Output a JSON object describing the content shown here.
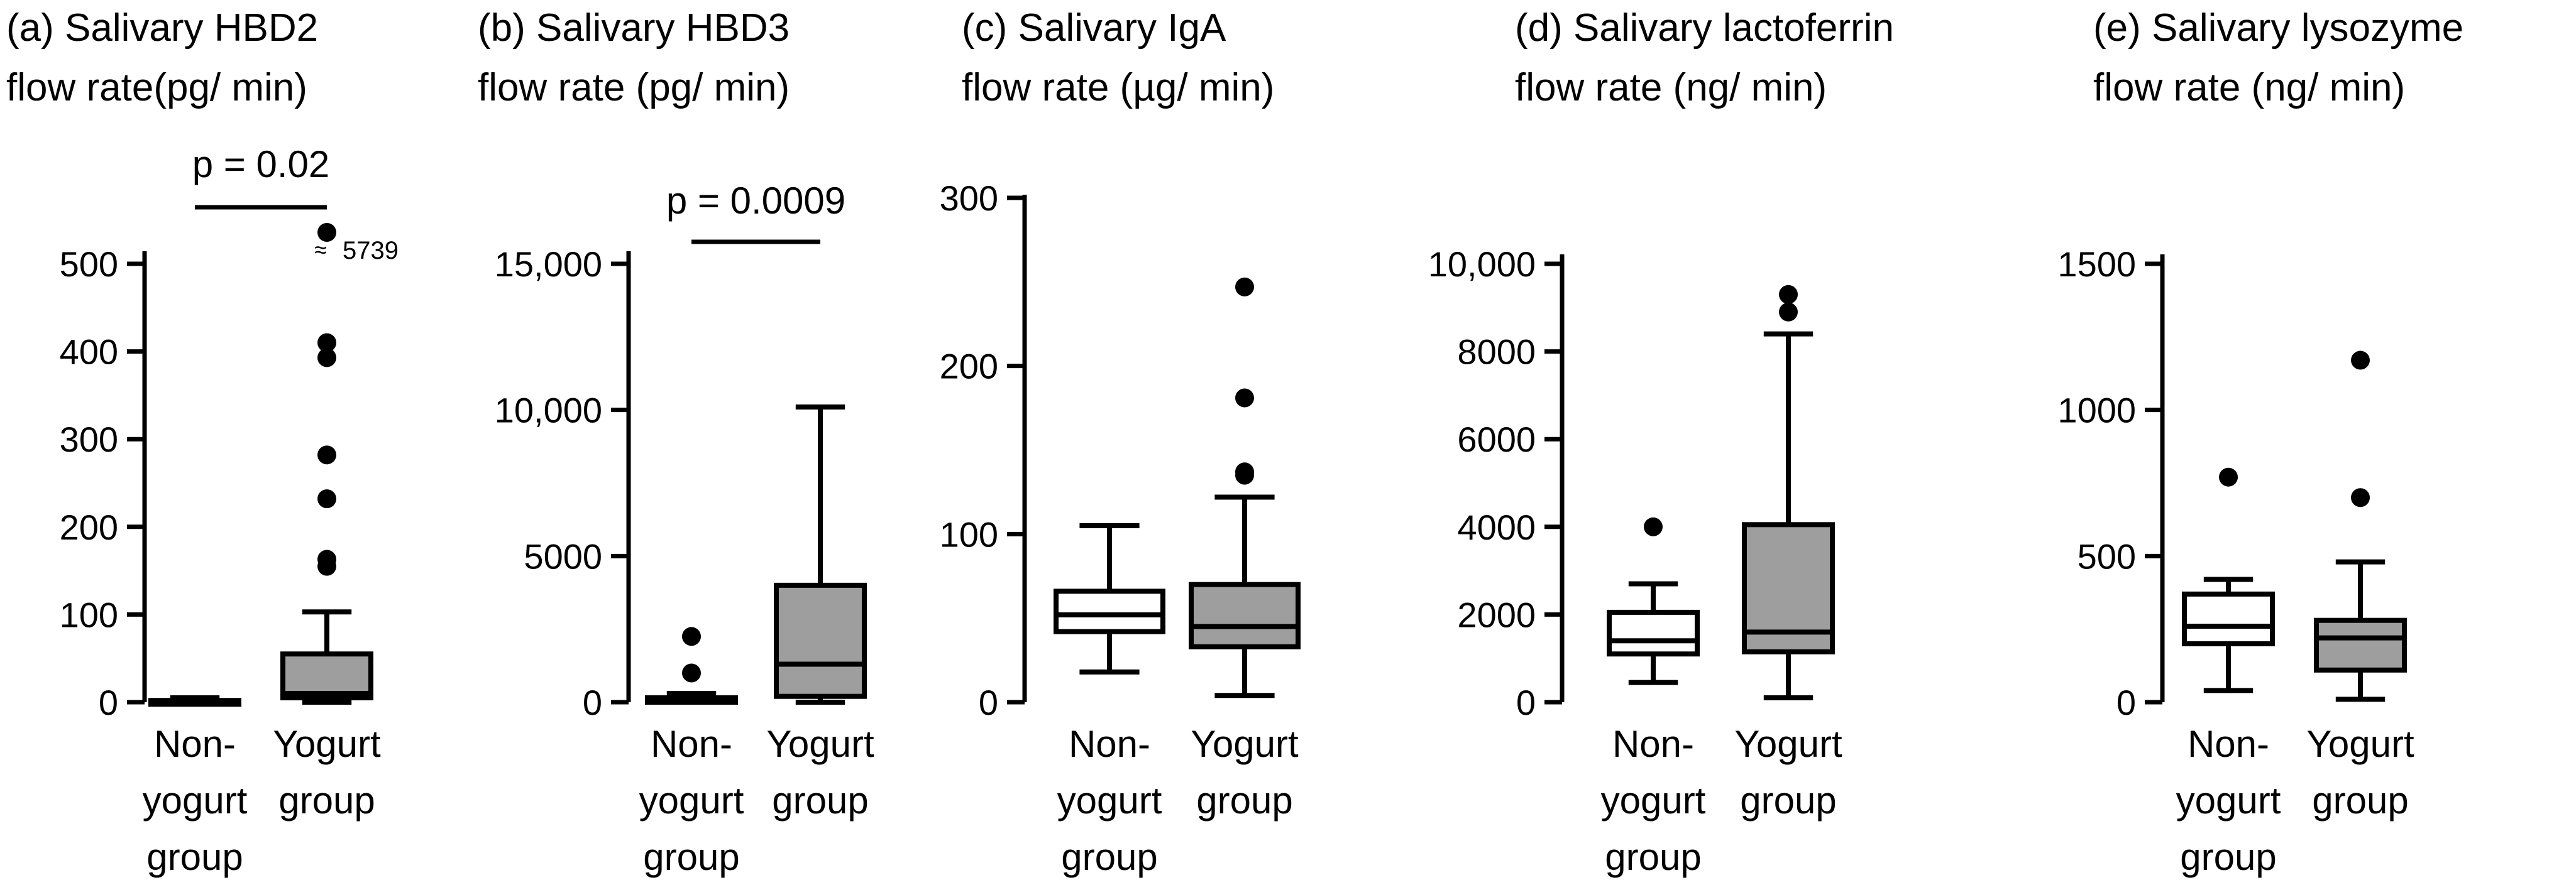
{
  "chart_data": [
    {
      "type": "box",
      "title_lines": [
        "(a) Salivary HBD2",
        "flow rate(pg/ min)"
      ],
      "yticks": [
        "0",
        "100",
        "200",
        "300",
        "400",
        "500"
      ],
      "ylim": [
        0,
        500
      ],
      "categories": [
        [
          "Non-",
          "yogurt",
          "group"
        ],
        [
          "Yogurt",
          "group"
        ]
      ],
      "boxes": [
        {
          "whisker_low": 0,
          "q1": 0,
          "median": 0,
          "q3": 2,
          "whisker_high": 5,
          "fill": "#ffffff",
          "outliers": []
        },
        {
          "whisker_low": 0,
          "q1": 5,
          "median": 10,
          "q3": 55,
          "whisker_high": 103,
          "fill": "#9e9e9e",
          "outliers": [
            155,
            163,
            232,
            282,
            393,
            410
          ]
        }
      ],
      "extreme_outlier": {
        "value": "5739",
        "symbol": "≈"
      },
      "pvalue": "p = 0.02"
    },
    {
      "type": "box",
      "title_lines": [
        "(b) Salivary HBD3",
        "flow rate (pg/ min)"
      ],
      "yticks": [
        "0",
        "5000",
        "10,000",
        "15,000"
      ],
      "ylim": [
        0,
        15000
      ],
      "categories": [
        [
          "Non-",
          "yogurt",
          "group"
        ],
        [
          "Yogurt",
          "group"
        ]
      ],
      "boxes": [
        {
          "whisker_low": 0,
          "q1": 0,
          "median": 50,
          "q3": 150,
          "whisker_high": 300,
          "fill": "#ffffff",
          "outliers": [
            1000,
            2250
          ]
        },
        {
          "whisker_low": 0,
          "q1": 200,
          "median": 1300,
          "q3": 4000,
          "whisker_high": 10100,
          "fill": "#9e9e9e",
          "outliers": []
        }
      ],
      "pvalue": "p = 0.0009"
    },
    {
      "type": "box",
      "title_lines": [
        "(c) Salivary IgA",
        "flow rate (µg/ min)"
      ],
      "yticks": [
        "0",
        "100",
        "200",
        "300"
      ],
      "ylim": [
        0,
        300
      ],
      "categories": [
        [
          "Non-",
          "yogurt",
          "group"
        ],
        [
          "Yogurt",
          "group"
        ]
      ],
      "boxes": [
        {
          "whisker_low": 18,
          "q1": 42,
          "median": 52,
          "q3": 66,
          "whisker_high": 105,
          "fill": "#ffffff",
          "outliers": []
        },
        {
          "whisker_low": 4,
          "q1": 33,
          "median": 45,
          "q3": 70,
          "whisker_high": 122,
          "fill": "#9e9e9e",
          "outliers": [
            135,
            137,
            181,
            247
          ]
        }
      ]
    },
    {
      "type": "box",
      "title_lines": [
        "(d) Salivary lactoferrin",
        "flow rate (ng/ min)"
      ],
      "yticks": [
        "0",
        "2000",
        "4000",
        "6000",
        "8000",
        "10,000"
      ],
      "ylim": [
        0,
        10000
      ],
      "categories": [
        [
          "Non-",
          "yogurt",
          "group"
        ],
        [
          "Yogurt",
          "group"
        ]
      ],
      "boxes": [
        {
          "whisker_low": 450,
          "q1": 1100,
          "median": 1400,
          "q3": 2050,
          "whisker_high": 2700,
          "fill": "#ffffff",
          "outliers": [
            4000
          ]
        },
        {
          "whisker_low": 100,
          "q1": 1150,
          "median": 1600,
          "q3": 4050,
          "whisker_high": 8400,
          "fill": "#9e9e9e",
          "outliers": [
            8900,
            9300
          ]
        }
      ]
    },
    {
      "type": "box",
      "title_lines": [
        "(e) Salivary lysozyme",
        "flow rate (ng/ min)"
      ],
      "yticks": [
        "0",
        "500",
        "1000",
        "1500"
      ],
      "ylim": [
        0,
        1500
      ],
      "categories": [
        [
          "Non-",
          "yogurt",
          "group"
        ],
        [
          "Yogurt",
          "group"
        ]
      ],
      "boxes": [
        {
          "whisker_low": 40,
          "q1": 200,
          "median": 260,
          "q3": 370,
          "whisker_high": 420,
          "fill": "#ffffff",
          "outliers": [
            770
          ]
        },
        {
          "whisker_low": 10,
          "q1": 110,
          "median": 220,
          "q3": 280,
          "whisker_high": 480,
          "fill": "#9e9e9e",
          "outliers": [
            700,
            1170
          ]
        }
      ]
    }
  ]
}
